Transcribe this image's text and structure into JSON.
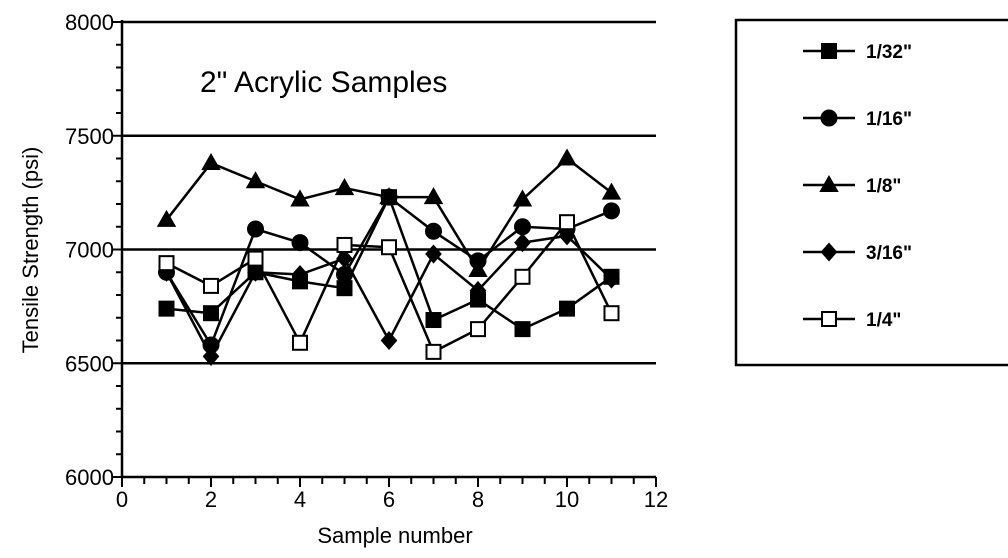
{
  "chart_data": {
    "type": "line",
    "title": "2\" Acrylic Samples",
    "xlabel": "Sample number",
    "ylabel": "Tensile Strength (psi)",
    "xlim": [
      0,
      12
    ],
    "ylim": [
      6000,
      8000
    ],
    "x_ticks": [
      0,
      2,
      4,
      6,
      8,
      10,
      12
    ],
    "y_ticks": [
      6000,
      6500,
      7000,
      7500,
      8000
    ],
    "gridlines_y": [
      6500,
      7000,
      7500,
      8000
    ],
    "legend_position": "right",
    "x": [
      1,
      2,
      3,
      4,
      5,
      6,
      7,
      8,
      9,
      10,
      11
    ],
    "series": [
      {
        "name": "1/32\"",
        "marker": "filled-square",
        "values": [
          6740,
          6720,
          6900,
          6860,
          6830,
          7230,
          6690,
          6780,
          6650,
          6740,
          6880
        ]
      },
      {
        "name": "1/16\"",
        "marker": "filled-circle",
        "values": [
          6900,
          6580,
          7090,
          7030,
          6890,
          7230,
          7080,
          6950,
          7100,
          7090,
          7170
        ]
      },
      {
        "name": "1/8\"",
        "marker": "filled-triangle",
        "values": [
          7130,
          7380,
          7300,
          7220,
          7270,
          7230,
          7230,
          6910,
          7220,
          7400,
          7250
        ]
      },
      {
        "name": "3/16\"",
        "marker": "filled-diamond",
        "values": [
          6900,
          6530,
          6900,
          6890,
          6960,
          6600,
          6980,
          6820,
          7030,
          7060,
          6870
        ]
      },
      {
        "name": "1/4\"",
        "marker": "open-square",
        "values": [
          6940,
          6840,
          6960,
          6590,
          7020,
          7010,
          6550,
          6650,
          6880,
          7120,
          6720
        ]
      }
    ]
  }
}
